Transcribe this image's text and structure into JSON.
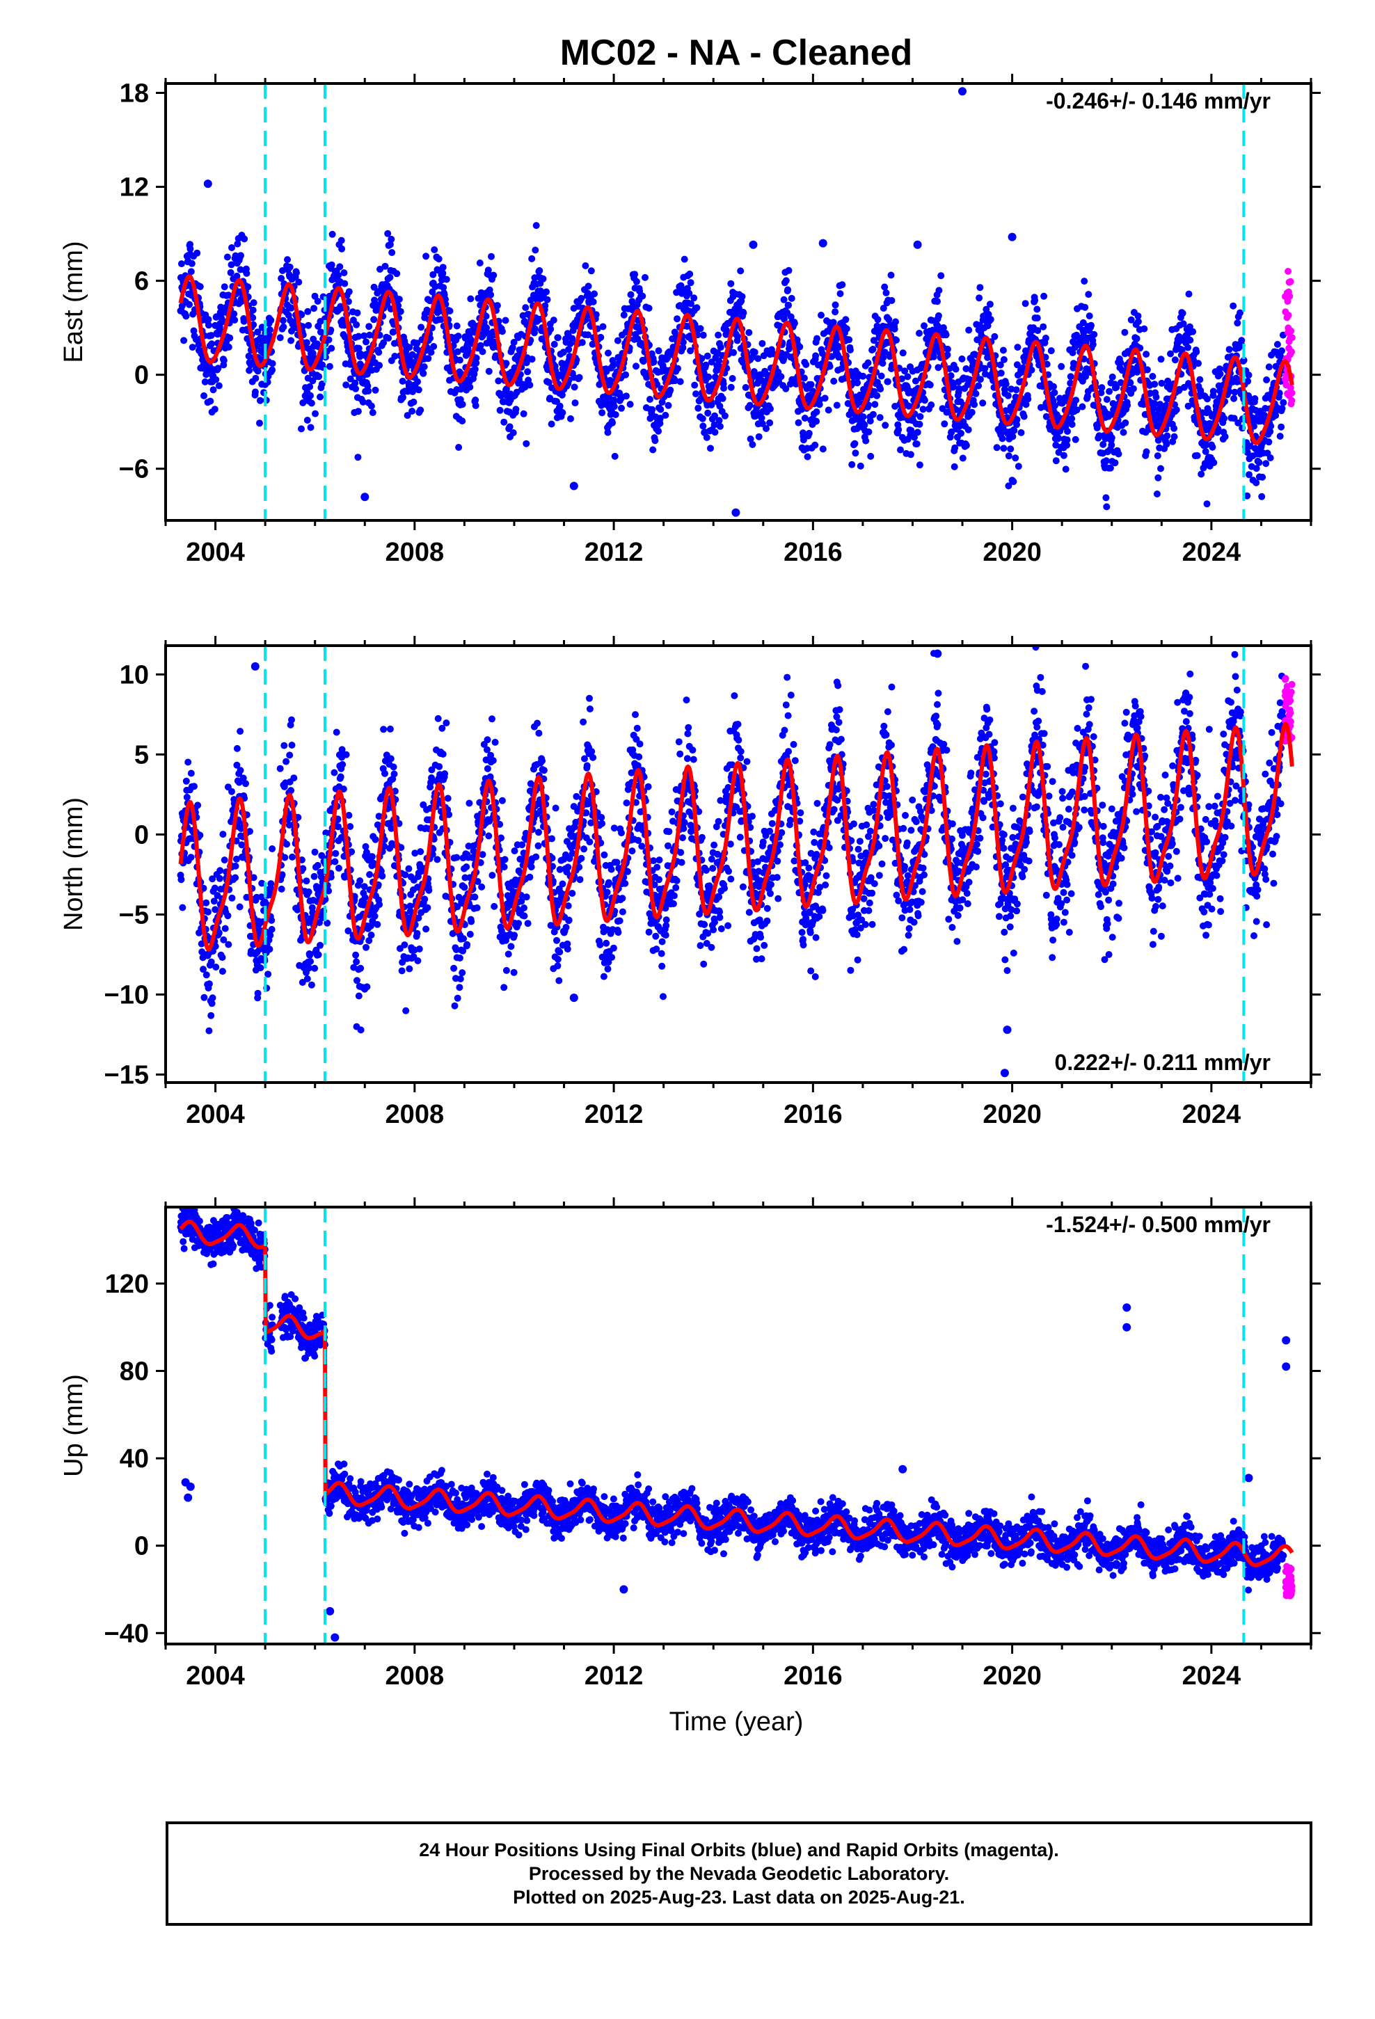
{
  "chart_data": {
    "title": "MC02  - NA - Cleaned",
    "xlabel": "Time (year)",
    "xlim": [
      2003.0,
      2026.0
    ],
    "x_ticks": [
      2004,
      2008,
      2012,
      2016,
      2020,
      2024
    ],
    "equipment_change_epochs": [
      2005.0,
      2006.2,
      2024.65
    ],
    "colors": {
      "final_orbits": "#0000ff",
      "rapid_orbits": "#ff00ff",
      "model": "#ff0000",
      "offsets": "#00e5ee"
    },
    "panels": [
      {
        "type": "scatter",
        "name": "east",
        "ylabel": "East (mm)",
        "ylim": [
          -9.3,
          18.6
        ],
        "y_ticks": [
          -6,
          0,
          6,
          12,
          18
        ],
        "rate_label": "-0.246+/- 0.146 mm/yr",
        "rate_label_position": "top-right",
        "model": {
          "mean": 0.8,
          "trend_per_year": -0.246,
          "annual_amplitude": 2.6,
          "semiannual_amplitude": 0.4,
          "noise": 1.6
        },
        "offsets": [],
        "outliers": [
          [
            2003.85,
            12.2
          ],
          [
            2019.0,
            18.1
          ],
          [
            2014.8,
            8.3
          ],
          [
            2016.2,
            8.4
          ],
          [
            2018.1,
            8.3
          ],
          [
            2020.0,
            8.8
          ],
          [
            2011.2,
            -7.1
          ],
          [
            2007.0,
            -7.8
          ],
          [
            2014.45,
            -8.8
          ]
        ],
        "rapid_range": [
          -2.0,
          6.8
        ]
      },
      {
        "type": "scatter",
        "name": "north",
        "ylabel": "North (mm)",
        "ylim": [
          -15.5,
          11.8
        ],
        "y_ticks": [
          -15,
          -10,
          -5,
          0,
          5,
          10
        ],
        "rate_label": "0.222+/- 0.211 mm/yr",
        "rate_label_position": "bottom-right",
        "model": {
          "mean": -0.8,
          "trend_per_year": 0.222,
          "annual_amplitude": 4.2,
          "semiannual_amplitude": 1.2,
          "noise": 2.0
        },
        "offsets": [],
        "outliers": [
          [
            2004.8,
            10.5
          ],
          [
            2018.5,
            11.3
          ],
          [
            2019.85,
            -14.9
          ],
          [
            2011.2,
            -10.2
          ],
          [
            2019.9,
            -12.2
          ]
        ],
        "rapid_range": [
          5.5,
          9.8
        ]
      },
      {
        "type": "scatter",
        "name": "up",
        "ylabel": "Up (mm)",
        "ylim": [
          -45,
          155
        ],
        "y_ticks": [
          -40,
          0,
          40,
          80,
          120
        ],
        "rate_label": "-1.524+/- 0.500 mm/yr",
        "rate_label_position": "top-right",
        "model": {
          "mean": 12,
          "trend_per_year": -1.524,
          "annual_amplitude": 4.5,
          "semiannual_amplitude": 1.0,
          "noise": 4.5
        },
        "offsets": [
          [
            2005.0,
            -40
          ],
          [
            2006.2,
            -75
          ]
        ],
        "outliers": [
          [
            2003.4,
            29
          ],
          [
            2003.45,
            22
          ],
          [
            2003.5,
            27
          ],
          [
            2022.3,
            109
          ],
          [
            2022.3,
            100
          ],
          [
            2024.75,
            31
          ],
          [
            2025.5,
            94
          ],
          [
            2025.5,
            82
          ],
          [
            2006.3,
            -30
          ],
          [
            2006.4,
            -42
          ],
          [
            2017.8,
            35
          ],
          [
            2012.2,
            -20
          ]
        ],
        "rapid_range": [
          -23,
          -8
        ]
      }
    ],
    "legend": {
      "line1": "24 Hour Positions Using Final Orbits (blue) and Rapid Orbits (magenta).",
      "line2": "Processed by the Nevada Geodetic Laboratory.",
      "line3": "Plotted on 2025-Aug-23. Last data on 2025-Aug-21."
    }
  }
}
